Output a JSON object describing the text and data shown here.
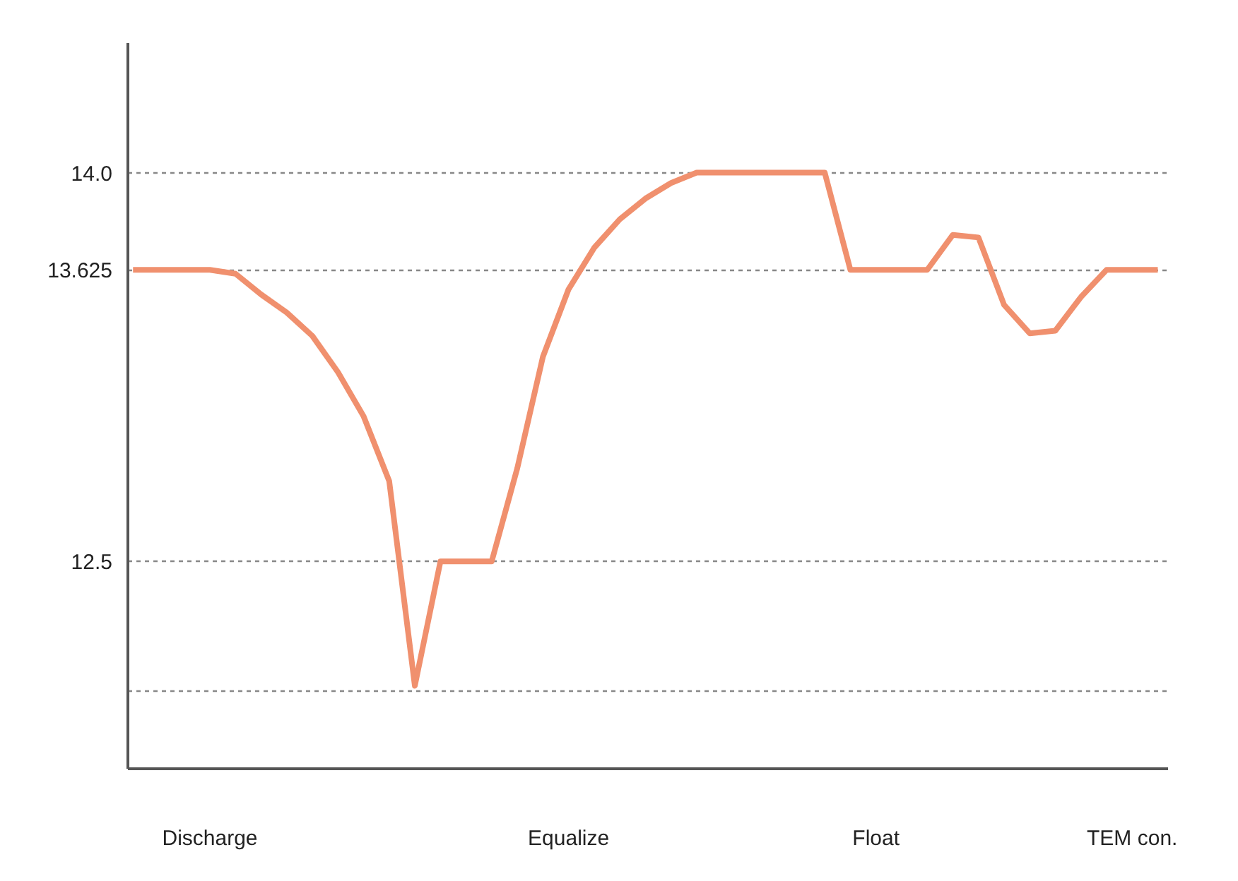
{
  "chart_data": {
    "type": "line",
    "categories": [
      null,
      null,
      null,
      "Discharge",
      null,
      null,
      null,
      null,
      null,
      null,
      null,
      null,
      null,
      null,
      null,
      null,
      null,
      "Equalize",
      null,
      null,
      null,
      null,
      null,
      null,
      null,
      null,
      null,
      null,
      null,
      "Float",
      null,
      null,
      null,
      null,
      null,
      null,
      null,
      null,
      null,
      "TEM con.",
      null
    ],
    "series": [
      {
        "color": "#f0906e",
        "values": [
          13.625,
          13.625,
          13.625,
          13.625,
          13.61,
          13.53,
          13.46,
          13.37,
          13.23,
          13.06,
          12.81,
          12.02,
          12.5,
          12.5,
          12.5,
          12.86,
          13.29,
          13.55,
          13.71,
          13.82,
          13.9,
          13.96,
          14.0,
          14.0,
          14.0,
          14.0,
          14.0,
          14.0,
          13.625,
          13.625,
          13.625,
          13.625,
          13.76,
          13.75,
          13.49,
          13.38,
          13.39,
          13.52,
          13.625,
          13.625,
          13.625
        ]
      }
    ],
    "ylim": [
      11.7,
      14.5
    ],
    "yticks": [
      {
        "value": 12.0,
        "label": null
      },
      12.5,
      13.625,
      {
        "value": 14.0,
        "label": "14.0"
      }
    ],
    "grid": "y",
    "marker": "none",
    "line_style": "solid"
  }
}
